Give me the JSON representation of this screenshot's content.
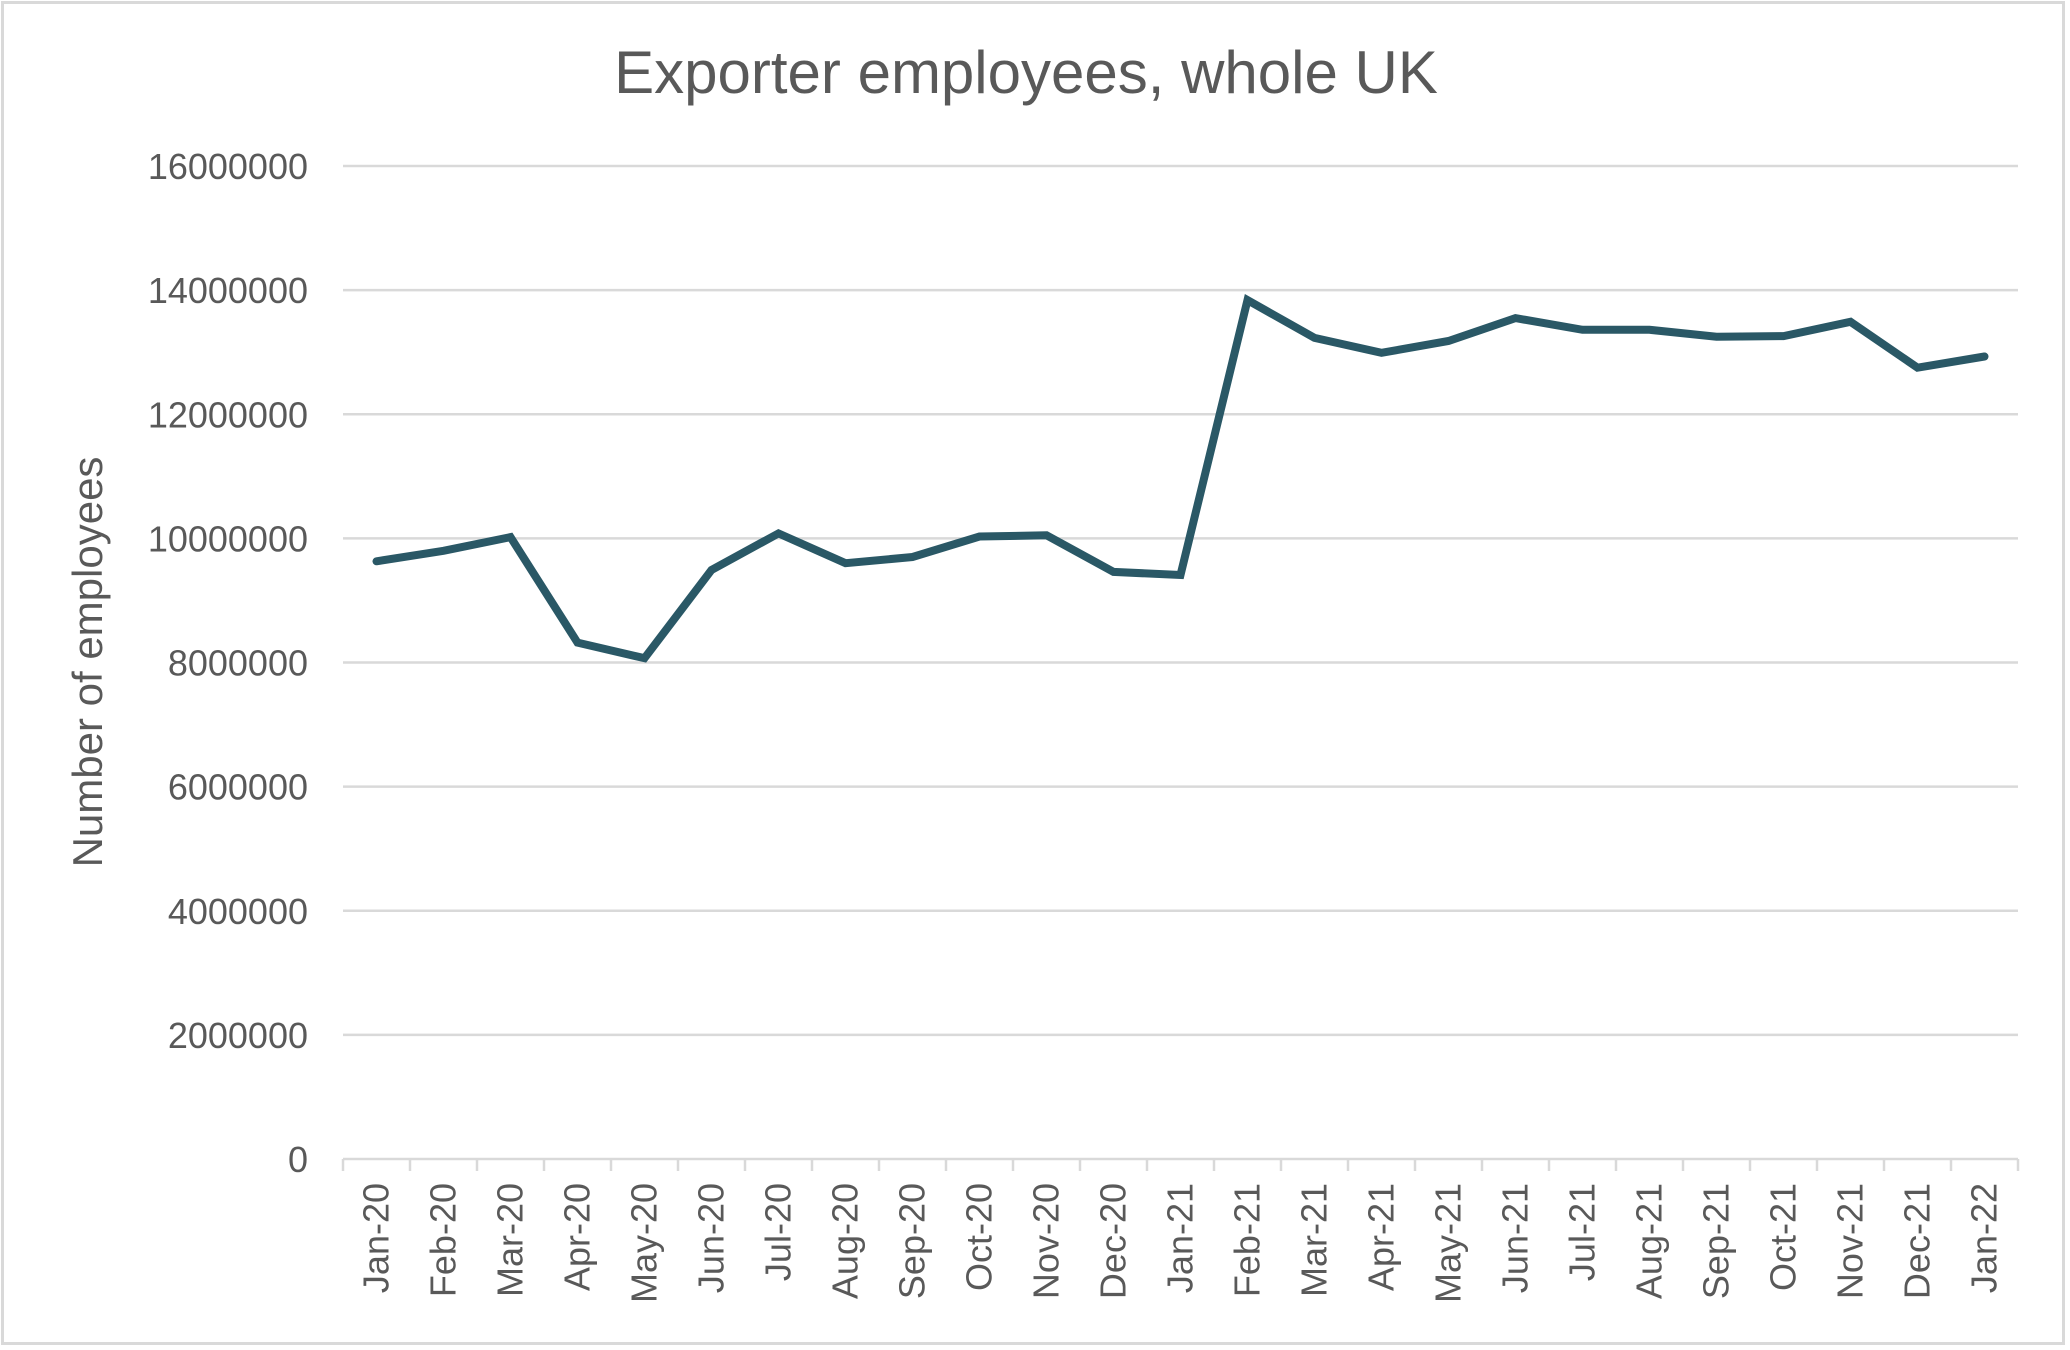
{
  "chart_data": {
    "type": "line",
    "title": "Exporter employees, whole UK",
    "xlabel": "",
    "ylabel": "Number of employees",
    "ylim": [
      0,
      16000000
    ],
    "yticks": [
      0,
      2000000,
      4000000,
      6000000,
      8000000,
      10000000,
      12000000,
      14000000,
      16000000
    ],
    "ytick_labels": [
      "0",
      "2000000",
      "4000000",
      "6000000",
      "8000000",
      "10000000",
      "12000000",
      "14000000",
      "16000000"
    ],
    "grid": true,
    "legend": null,
    "line_color": "#2a5866",
    "categories": [
      "Jan-20",
      "Feb-20",
      "Mar-20",
      "Apr-20",
      "May-20",
      "Jun-20",
      "Jul-20",
      "Aug-20",
      "Sep-20",
      "Oct-20",
      "Nov-20",
      "Dec-20",
      "Jan-21",
      "Feb-21",
      "Mar-21",
      "Apr-21",
      "May-21",
      "Jun-21",
      "Jul-21",
      "Aug-21",
      "Sep-21",
      "Oct-21",
      "Nov-21",
      "Dec-21",
      "Jan-22"
    ],
    "series": [
      {
        "name": "Exporter employees",
        "values": [
          9630000,
          9800000,
          10020000,
          8320000,
          8070000,
          9490000,
          10080000,
          9600000,
          9700000,
          10030000,
          10050000,
          9460000,
          9410000,
          13840000,
          13230000,
          12990000,
          13180000,
          13550000,
          13360000,
          13360000,
          13250000,
          13260000,
          13490000,
          12750000,
          12930000
        ]
      }
    ]
  }
}
